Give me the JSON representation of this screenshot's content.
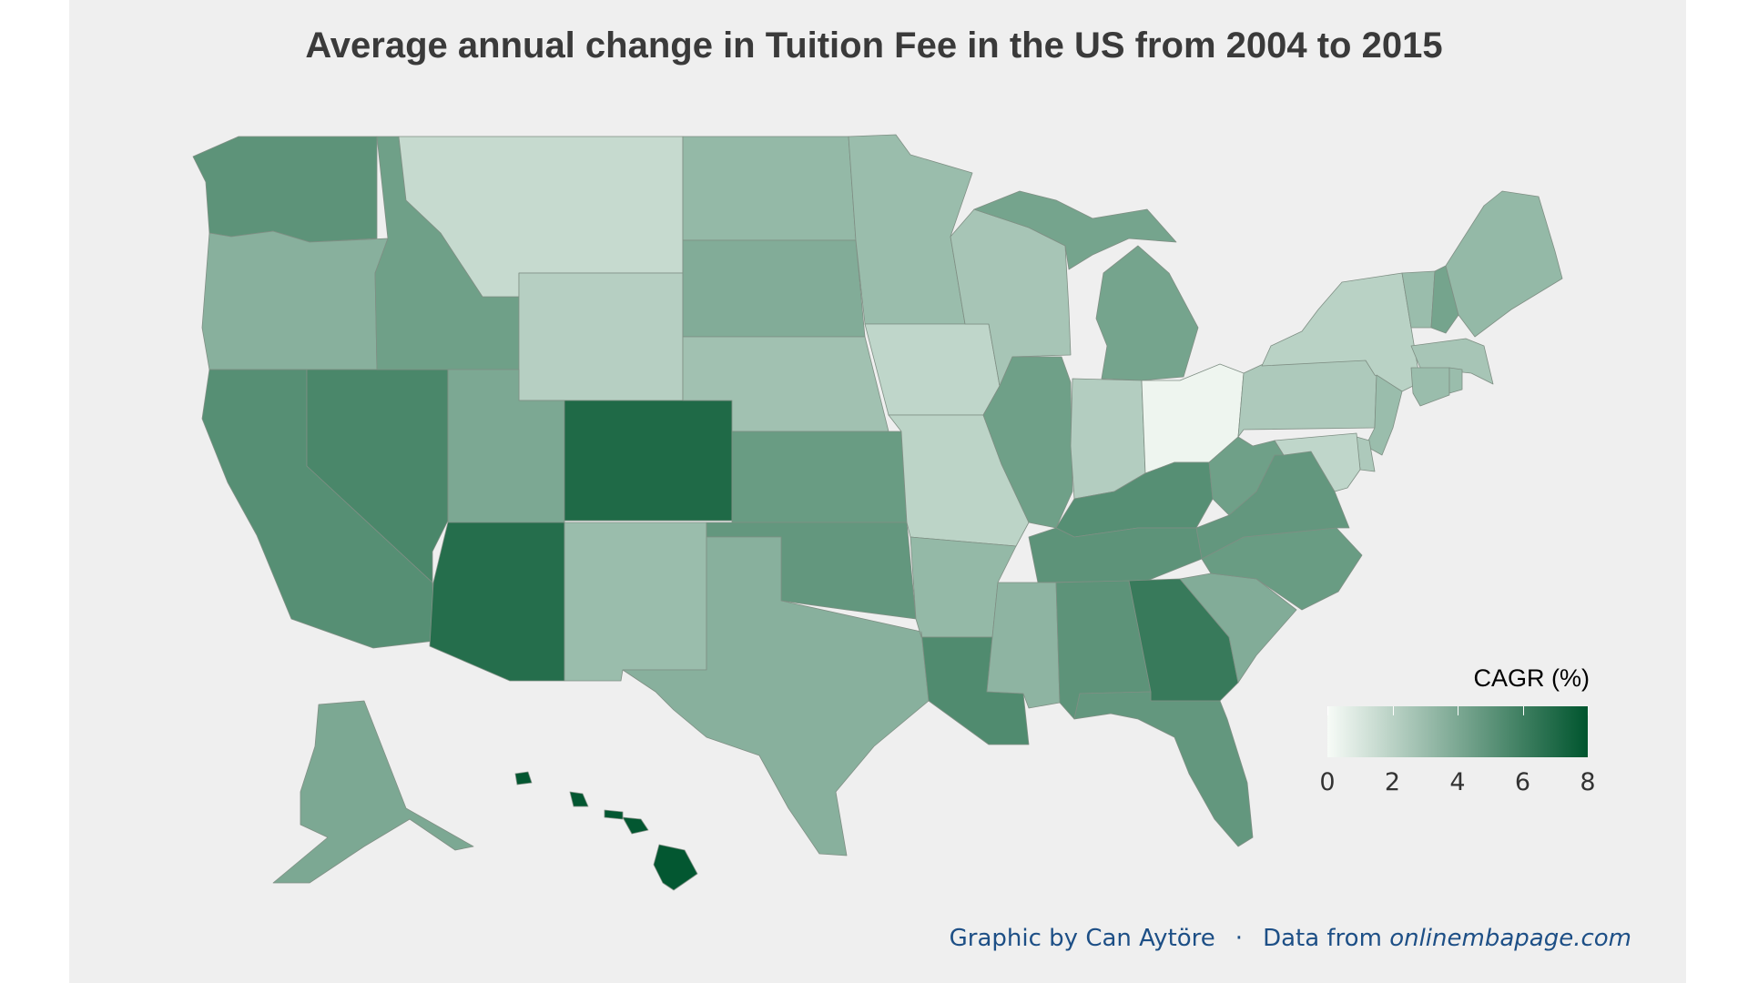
{
  "title": "Average annual change in Tuition Fee in the US from 2004 to 2015",
  "legend": {
    "title": "CAGR (%)",
    "ticks": [
      "0",
      "2",
      "4",
      "6",
      "8"
    ],
    "range": [
      0,
      8
    ],
    "color_low": "#f7fbf7",
    "color_high": "#00552e"
  },
  "footer": {
    "credit": "Graphic by Can Aytöre",
    "separator": "·",
    "source_prefix": "Data from",
    "source": "onlinembapage.com"
  },
  "states": {
    "WA": 5.0,
    "OR": 3.6,
    "CA": 5.2,
    "NV": 5.6,
    "ID": 4.4,
    "MT": 1.6,
    "WY": 2.1,
    "UT": 4.0,
    "CO": 7.0,
    "AZ": 6.8,
    "NM": 3.0,
    "ND": 3.2,
    "SD": 3.8,
    "NE": 2.8,
    "KS": 4.6,
    "OK": 4.8,
    "TX": 3.6,
    "MN": 3.0,
    "IA": 1.8,
    "MO": 1.9,
    "AR": 3.2,
    "LA": 5.4,
    "WI": 2.6,
    "IL": 4.4,
    "MI": 4.2,
    "IN": 2.2,
    "OH": 0.3,
    "KY": 5.2,
    "TN": 5.0,
    "MS": 3.4,
    "AL": 5.0,
    "GA": 6.2,
    "FL": 4.8,
    "SC": 3.8,
    "NC": 4.6,
    "VA": 4.8,
    "WV": 4.4,
    "PA": 2.4,
    "NY": 2.0,
    "VT": 3.0,
    "NH": 4.2,
    "ME": 3.2,
    "MA": 2.6,
    "CT": 3.0,
    "RI": 3.0,
    "NJ": 3.0,
    "DE": 2.4,
    "MD": 1.8,
    "AK": 4.0,
    "HI": 7.9
  }
}
